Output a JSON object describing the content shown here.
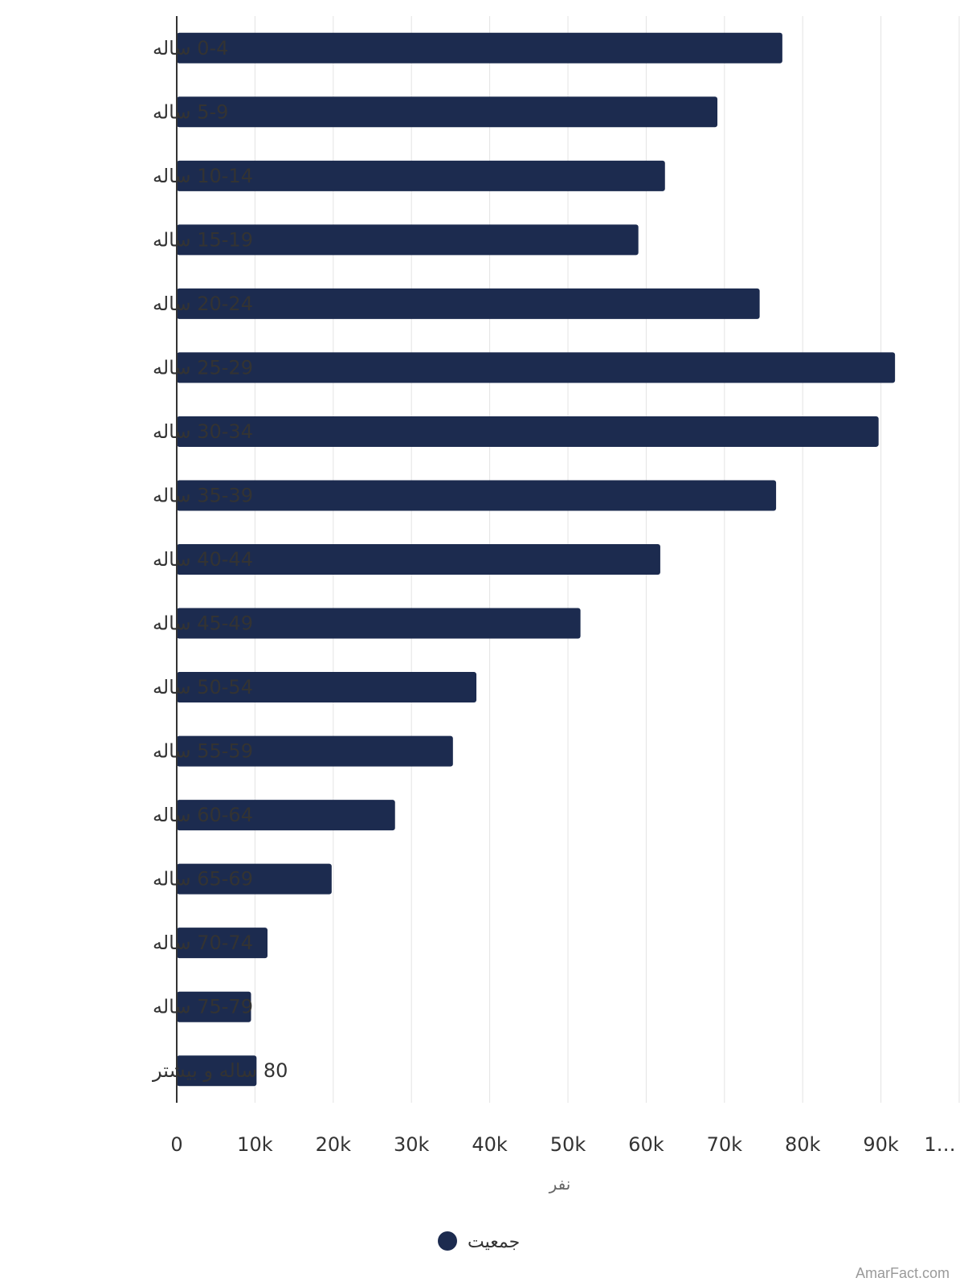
{
  "chart_data": {
    "type": "bar",
    "orientation": "horizontal",
    "categories": [
      "0-4 ساله",
      "5-9 ساله",
      "10-14 ساله",
      "15-19 ساله",
      "20-24 ساله",
      "25-29 ساله",
      "30-34 ساله",
      "35-39 ساله",
      "40-44 ساله",
      "45-49 ساله",
      "50-54 ساله",
      "55-59 ساله",
      "60-64 ساله",
      "65-69 ساله",
      "70-74 ساله",
      "75-79 ساله",
      "80 ساله و بیشتر"
    ],
    "series": [
      {
        "name": "جمعیت",
        "values": [
          77400,
          69100,
          62400,
          59000,
          74500,
          91800,
          89700,
          76600,
          61800,
          51600,
          38300,
          35300,
          27900,
          19800,
          11600,
          9500,
          10200
        ]
      }
    ],
    "xlabel": "نفر",
    "ylabel": "",
    "xlim": [
      0,
      100000
    ],
    "ticks": [
      "0",
      "10k",
      "20k",
      "30k",
      "40k",
      "50k",
      "60k",
      "70k",
      "80k",
      "90k",
      "1…"
    ],
    "grid": true,
    "legend_position": "bottom",
    "colors": {
      "bar": "#1c2b4f",
      "grid": "#e3e3e3",
      "axis": "#333333"
    }
  },
  "watermark": "AmarFact.com"
}
